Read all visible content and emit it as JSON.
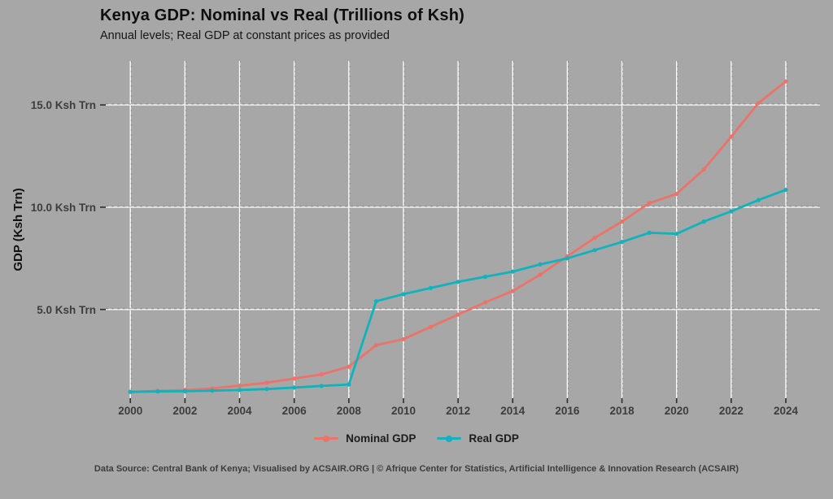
{
  "page": {
    "background": "#a7a7a7"
  },
  "chart_data": {
    "type": "line",
    "title": "Kenya GDP: Nominal vs Real (Trillions of Ksh)",
    "subtitle": "Annual levels; Real GDP at constant prices as provided",
    "ylabel": "GDP (Ksh Trn)",
    "xlabel": "",
    "x": [
      2000,
      2001,
      2002,
      2003,
      2004,
      2005,
      2006,
      2007,
      2008,
      2009,
      2010,
      2011,
      2012,
      2013,
      2014,
      2015,
      2016,
      2017,
      2018,
      2019,
      2020,
      2021,
      2022,
      2023,
      2024
    ],
    "series": [
      {
        "name": "Nominal GDP",
        "color": "#eb7369",
        "values": [
          0.97,
          1.02,
          1.06,
          1.14,
          1.27,
          1.42,
          1.62,
          1.83,
          2.2,
          3.25,
          3.55,
          4.15,
          4.75,
          5.35,
          5.9,
          6.7,
          7.6,
          8.5,
          9.3,
          10.2,
          10.65,
          11.85,
          13.45,
          15.1,
          16.15
        ]
      },
      {
        "name": "Real GDP",
        "color": "#10b2bc",
        "values": [
          0.97,
          0.99,
          1.0,
          1.03,
          1.06,
          1.11,
          1.18,
          1.26,
          1.33,
          5.4,
          5.75,
          6.05,
          6.35,
          6.6,
          6.85,
          7.2,
          7.5,
          7.9,
          8.3,
          8.75,
          8.7,
          9.3,
          9.8,
          10.35,
          10.85
        ]
      }
    ],
    "x_ticks": [
      2000,
      2002,
      2004,
      2006,
      2008,
      2010,
      2012,
      2014,
      2016,
      2018,
      2020,
      2022,
      2024
    ],
    "y_ticks": [
      {
        "value": 5,
        "label": "5.0 Ksh Trn"
      },
      {
        "value": 10,
        "label": "10.0 Ksh Trn"
      },
      {
        "value": 15,
        "label": "15.0 Ksh Trn"
      }
    ],
    "xlim": [
      1999.1,
      2025.25
    ],
    "ylim": [
      0.66,
      17.15
    ],
    "grid": true,
    "legend_position": "bottom",
    "colors": {
      "background": "#a7a7a7",
      "gridline": "#fdfdfd",
      "grid_dash_overlay": "#4d4d4d",
      "tick_mark": "#2f2f2f",
      "tick_label": "#3d3d3d",
      "axis_title": "#111111"
    }
  },
  "caption": "Data Source: Central Bank of Kenya; Visualised by ACSAIR.ORG | © Afrique Center for Statistics, Artificial Intelligence & Innovation Research (ACSAIR)"
}
